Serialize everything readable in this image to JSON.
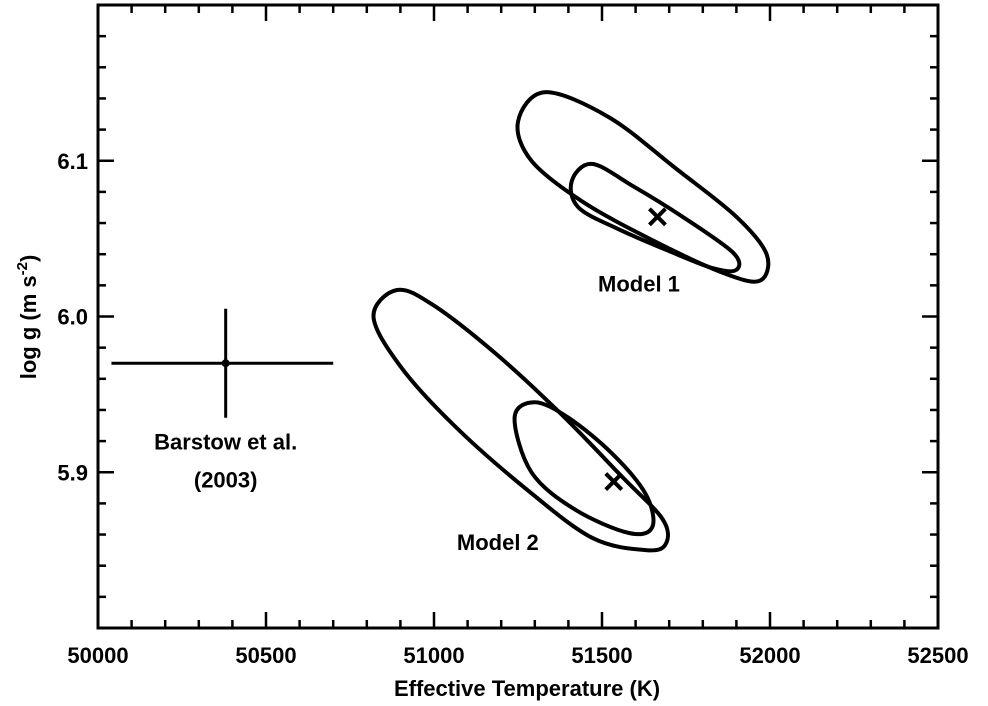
{
  "chart_data": {
    "type": "scatter",
    "title": "",
    "xlabel": "Effective Temperature (K)",
    "ylabel_parts": [
      "log g (m s",
      "-2",
      ")"
    ],
    "xlim": [
      50000,
      52500
    ],
    "ylim": [
      5.8,
      6.2
    ],
    "xticks": [
      50000,
      50500,
      51000,
      51500,
      52000,
      52500
    ],
    "yticks": [
      5.9,
      6.0,
      6.1
    ],
    "ytick_labels": [
      "5.9",
      "6.0",
      "6.1"
    ],
    "grid": false,
    "points": [
      {
        "name": "Barstow et al. (2003)",
        "label_lines": [
          "Barstow et al.",
          "(2003)"
        ],
        "x": 50380,
        "y": 5.97,
        "xerr": [
          50040,
          50700
        ],
        "yerr": [
          5.935,
          6.005
        ],
        "marker": "dot-errorbar"
      },
      {
        "name": "Model 1",
        "x": 51665,
        "y": 6.064,
        "marker": "x"
      },
      {
        "name": "Model 2",
        "x": 51535,
        "y": 5.894,
        "marker": "x"
      }
    ],
    "contours": [
      {
        "model": "Model 1",
        "level": "outer",
        "path": [
          [
            51250,
            6.125
          ],
          [
            51330,
            6.144
          ],
          [
            51520,
            6.128
          ],
          [
            51720,
            6.095
          ],
          [
            51900,
            6.064
          ],
          [
            51990,
            6.04
          ],
          [
            51970,
            6.023
          ],
          [
            51860,
            6.028
          ],
          [
            51650,
            6.049
          ],
          [
            51440,
            6.074
          ],
          [
            51290,
            6.1
          ],
          [
            51250,
            6.125
          ]
        ]
      },
      {
        "model": "Model 1",
        "level": "inner",
        "path": [
          [
            51410,
            6.087
          ],
          [
            51470,
            6.098
          ],
          [
            51590,
            6.084
          ],
          [
            51740,
            6.064
          ],
          [
            51890,
            6.041
          ],
          [
            51900,
            6.03
          ],
          [
            51830,
            6.031
          ],
          [
            51700,
            6.042
          ],
          [
            51550,
            6.056
          ],
          [
            51430,
            6.07
          ],
          [
            51410,
            6.087
          ]
        ]
      },
      {
        "model": "Model 2",
        "level": "outer",
        "path": [
          [
            50820,
            6.0
          ],
          [
            50890,
            6.017
          ],
          [
            51000,
            6.007
          ],
          [
            51190,
            5.975
          ],
          [
            51380,
            5.937
          ],
          [
            51560,
            5.897
          ],
          [
            51680,
            5.87
          ],
          [
            51690,
            5.854
          ],
          [
            51630,
            5.85
          ],
          [
            51470,
            5.858
          ],
          [
            51270,
            5.89
          ],
          [
            51060,
            5.93
          ],
          [
            50900,
            5.968
          ],
          [
            50820,
            6.0
          ]
        ]
      },
      {
        "model": "Model 2",
        "level": "inner",
        "path": [
          [
            51240,
            5.935
          ],
          [
            51300,
            5.945
          ],
          [
            51400,
            5.935
          ],
          [
            51530,
            5.912
          ],
          [
            51630,
            5.886
          ],
          [
            51650,
            5.865
          ],
          [
            51580,
            5.861
          ],
          [
            51420,
            5.876
          ],
          [
            51290,
            5.9
          ],
          [
            51240,
            5.935
          ]
        ]
      }
    ],
    "annotations": [
      {
        "text": "Model 1",
        "x": 51610,
        "y": 6.016
      },
      {
        "text": "Model 2",
        "x": 51190,
        "y": 5.85
      }
    ]
  }
}
